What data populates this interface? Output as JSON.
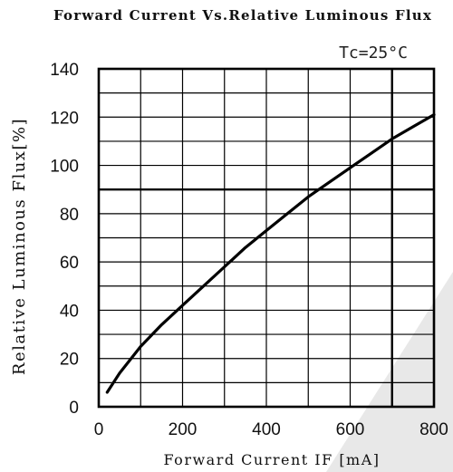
{
  "chart_data": {
    "type": "line",
    "title": "Forward Current Vs.Relative Luminous Flux",
    "xlabel": "Forward Current IF [mA]",
    "ylabel": "Relative Luminous Flux[%]",
    "annotation": "Tc=25°C",
    "xlim": [
      0,
      800
    ],
    "ylim": [
      0,
      140
    ],
    "xticks": [
      0,
      200,
      400,
      600,
      800
    ],
    "xtick_labels": [
      "0",
      "200",
      "400",
      "600",
      "800"
    ],
    "yticks": [
      0,
      20,
      40,
      60,
      80,
      100,
      120,
      140
    ],
    "ytick_labels": [
      "0",
      "20",
      "40",
      "60",
      "80",
      "100",
      "120",
      "140"
    ],
    "x_grid_step": 100,
    "y_grid_step": 10,
    "grid": true,
    "series": [
      {
        "x": [
          20,
          50,
          100,
          150,
          200,
          250,
          300,
          350,
          400,
          450,
          500,
          550,
          600,
          650,
          700,
          750,
          800
        ],
        "y": [
          6,
          14,
          25,
          34,
          42,
          50,
          58,
          66,
          73,
          80,
          87,
          93,
          99,
          105,
          111,
          116,
          121
        ]
      }
    ]
  }
}
